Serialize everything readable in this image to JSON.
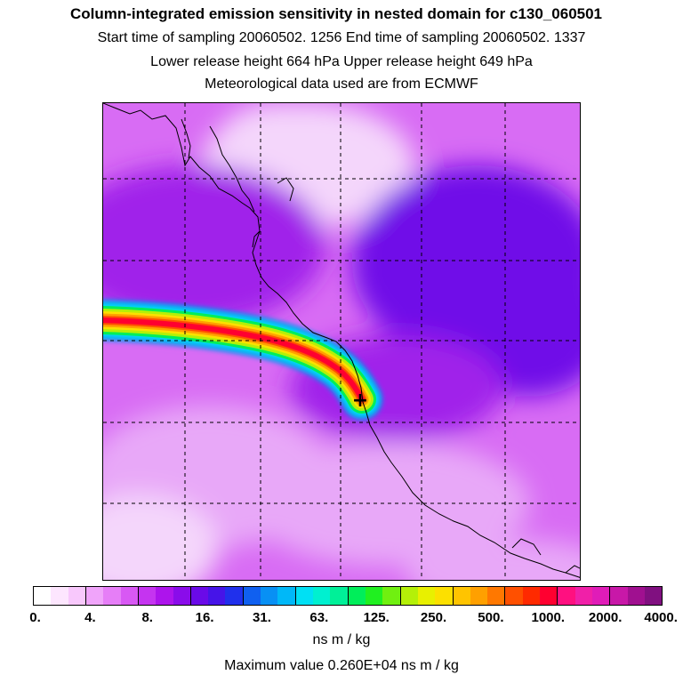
{
  "header": {
    "title": "Column-integrated emission sensitivity in nested domain for c130_060501",
    "line1": "Start time of sampling 20060502.  1256      End time of sampling 20060502.  1337",
    "line2": "Lower release height  664 hPa        Upper release height  649 hPa",
    "line3": "Meteorological data used are from ECMWF"
  },
  "colorbar": {
    "labels": [
      "0.",
      "4.",
      "8.",
      "16.",
      "31.",
      "63.",
      "125.",
      "250.",
      "500.",
      "1000.",
      "2000.",
      "4000."
    ],
    "colors": [
      "#ffffff",
      "#fde6fe",
      "#f8c8fc",
      "#f0a4fa",
      "#e67ef7",
      "#d858f4",
      "#c534f0",
      "#ad14ec",
      "#8a0cea",
      "#6a0ae8",
      "#4614e8",
      "#2030ec",
      "#1060f0",
      "#0890f4",
      "#00b8f8",
      "#00e0f4",
      "#00f0d0",
      "#00f098",
      "#00ee5a",
      "#20f020",
      "#70f010",
      "#b4f008",
      "#e8f000",
      "#fce000",
      "#ffc400",
      "#ffa000",
      "#ff7800",
      "#ff5000",
      "#ff2a00",
      "#ff0030",
      "#ff1080",
      "#f020a8",
      "#e01cb8",
      "#c818a8",
      "#a01090",
      "#801080"
    ],
    "units": "ns m / kg"
  },
  "footer": {
    "max_value": "Maximum value  0.260E+04 ns m / kg"
  },
  "map": {
    "receptor_marker": "+",
    "plume_colors": [
      "#ff0030",
      "#ff5000",
      "#ffa000",
      "#fce000",
      "#b4f008",
      "#00ee5a",
      "#00e0f4",
      "#0890f4"
    ],
    "background_colors": [
      "#f4d6fb",
      "#e8a8f8",
      "#d86cf4",
      "#c040f0",
      "#a020ea",
      "#7010e8"
    ],
    "coast_color": "#000000"
  }
}
